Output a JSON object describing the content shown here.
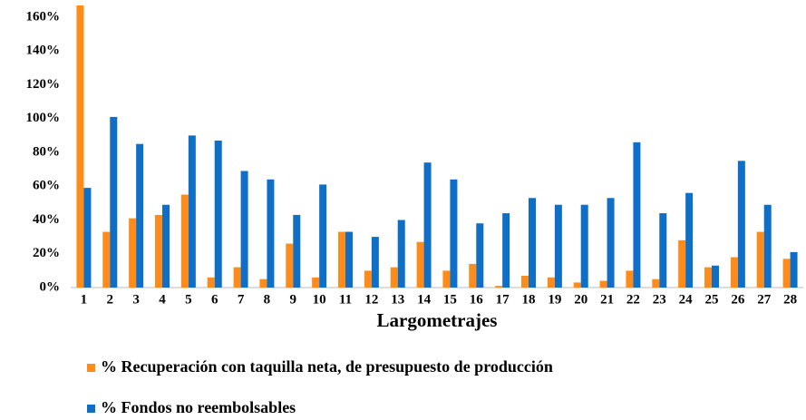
{
  "chart_data": {
    "type": "bar",
    "x_label": "Largometrajes",
    "categories": [
      "1",
      "2",
      "3",
      "4",
      "5",
      "6",
      "7",
      "8",
      "9",
      "10",
      "11",
      "12",
      "13",
      "14",
      "15",
      "16",
      "17",
      "18",
      "19",
      "20",
      "21",
      "22",
      "23",
      "24",
      "25",
      "26",
      "27",
      "28"
    ],
    "series": [
      {
        "name": "% Recuperación con taquilla neta, de presupuesto de producción",
        "color": "#ff8c1a",
        "values": [
          167,
          33,
          41,
          43,
          55,
          6,
          12,
          5,
          26,
          6,
          33,
          10,
          12,
          27,
          10,
          14,
          1,
          7,
          6,
          3,
          4,
          10,
          5,
          28,
          12,
          18,
          33,
          17
        ]
      },
      {
        "name": "% Fondos no reembolsables",
        "color": "#0f6fc6",
        "values": [
          59,
          101,
          85,
          49,
          90,
          87,
          69,
          64,
          43,
          61,
          33,
          30,
          40,
          74,
          64,
          38,
          44,
          53,
          49,
          49,
          53,
          86,
          44,
          56,
          13,
          75,
          49,
          21
        ]
      }
    ],
    "ylim": [
      0,
      170
    ],
    "yticks": [
      {
        "value": 0,
        "label": "0%"
      },
      {
        "value": 20,
        "label": "20%"
      },
      {
        "value": 40,
        "label": "40%"
      },
      {
        "value": 60,
        "label": "60%"
      },
      {
        "value": 80,
        "label": "80%"
      },
      {
        "value": 100,
        "label": "100%"
      },
      {
        "value": 120,
        "label": "120%"
      },
      {
        "value": 140,
        "label": "140%"
      },
      {
        "value": 160,
        "label": "160%"
      }
    ],
    "grid": false
  }
}
